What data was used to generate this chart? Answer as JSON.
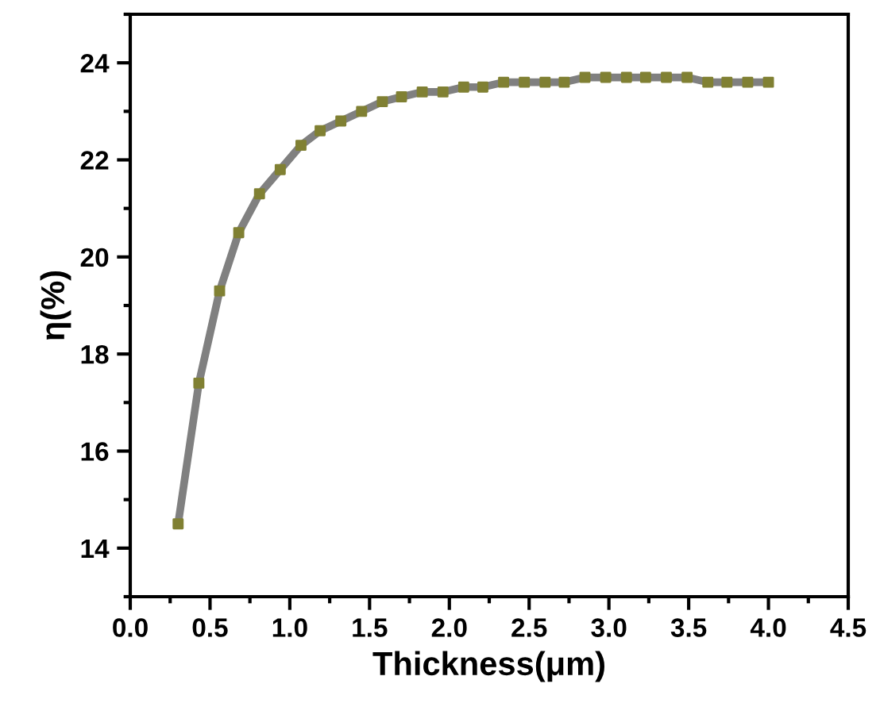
{
  "chart_data": {
    "type": "line",
    "xlabel": "Thickness(μm)",
    "ylabel": "η(%)",
    "x": [
      0.3,
      0.43,
      0.56,
      0.68,
      0.81,
      0.94,
      1.07,
      1.19,
      1.32,
      1.45,
      1.58,
      1.7,
      1.83,
      1.96,
      2.09,
      2.21,
      2.34,
      2.47,
      2.6,
      2.72,
      2.85,
      2.98,
      3.11,
      3.23,
      3.36,
      3.49,
      3.62,
      3.74,
      3.87,
      4.0
    ],
    "series": [
      {
        "color": "#808080",
        "colors": [
          "#808033",
          "#808033",
          "#808033",
          "#808033",
          "#808033",
          "#808033",
          "#808033",
          "#808033",
          "#808033",
          "#808033",
          "#808033",
          "#808033",
          "#808033",
          "#808033",
          "#808033",
          "#808033",
          "#808033",
          "#808033",
          "#808033",
          "#808033",
          "#808033",
          "#808033",
          "#808033",
          "#808033",
          "#808033",
          "#808033",
          "#808033",
          "#808033",
          "#808033",
          "#808033"
        ],
        "values": [
          14.5,
          17.4,
          19.3,
          20.5,
          21.3,
          21.8,
          22.3,
          22.6,
          22.8,
          23.0,
          23.2,
          23.3,
          23.4,
          23.4,
          23.5,
          23.5,
          23.6,
          23.6,
          23.6,
          23.6,
          23.7,
          23.7,
          23.7,
          23.7,
          23.7,
          23.7,
          23.6,
          23.6,
          23.6,
          23.6
        ]
      }
    ],
    "marker": "square",
    "line_style": "solid",
    "grid": false,
    "legend": false,
    "xlim": [
      0.0,
      4.5
    ],
    "xticks": [
      {
        "value": 0,
        "label": "0.0"
      },
      0.5,
      {
        "value": 1,
        "label": "1.0"
      },
      1.5,
      {
        "value": 2,
        "label": "2.0"
      },
      2.5,
      {
        "value": 3,
        "label": "3.0"
      },
      3.5,
      {
        "value": 4,
        "label": "4.0"
      },
      4.5
    ],
    "ylim": [
      13,
      25
    ],
    "yticks": [
      14,
      16,
      18,
      20,
      22,
      24
    ]
  }
}
